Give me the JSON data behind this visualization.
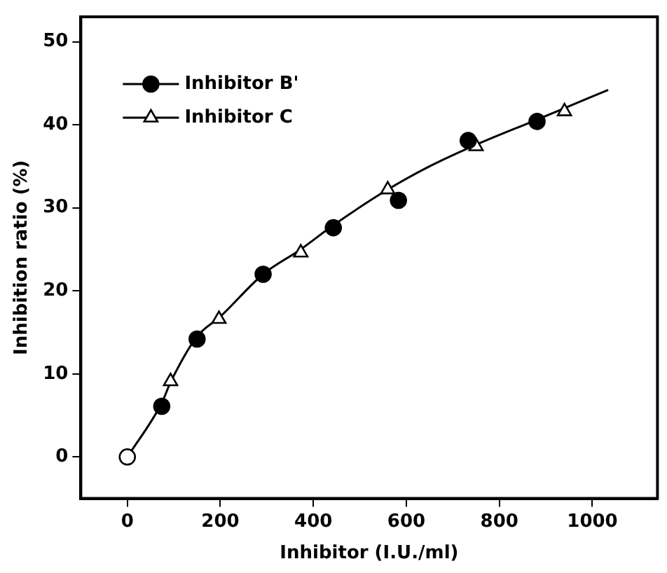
{
  "chart_data": {
    "type": "scatter",
    "xlabel": "Inhibitor (I.U./ml)",
    "ylabel": "Inhibition ratio (%)",
    "xlim": [
      -100,
      1140
    ],
    "ylim": [
      -5,
      53
    ],
    "xticks": [
      0,
      200,
      400,
      600,
      800,
      1000
    ],
    "yticks": [
      0,
      10,
      20,
      30,
      40,
      50
    ],
    "grid": false,
    "legend": "top left",
    "series": [
      {
        "type": "line",
        "marker": "none",
        "line_style": "solid",
        "color": "#000000",
        "x": [
          0,
          74,
          93,
          150,
          200,
          292,
          373,
          443,
          560,
          650,
          750,
          880,
          940,
          1034
        ],
        "values": [
          0,
          6.5,
          9,
          14.5,
          16.9,
          22,
          25,
          27.9,
          32.2,
          35,
          37.6,
          40.6,
          42,
          44.2
        ]
      },
      {
        "name": "Inhibitor B'",
        "marker": "circle",
        "color": "#000000",
        "x": [
          74,
          150,
          292,
          443,
          583,
          733,
          881
        ],
        "values": [
          6.1,
          14.2,
          22.0,
          27.6,
          30.9,
          38.1,
          40.4
        ]
      },
      {
        "name": "Inhibitor C",
        "marker": "triangle",
        "color": "#ffffff",
        "x": [
          93,
          197,
          373,
          560,
          750,
          940
        ],
        "values": [
          9.1,
          16.6,
          24.6,
          32.2,
          37.4,
          41.6
        ]
      },
      {
        "marker": "circle",
        "color": "#ffffff",
        "x": [
          0
        ],
        "values": [
          0
        ]
      }
    ]
  }
}
